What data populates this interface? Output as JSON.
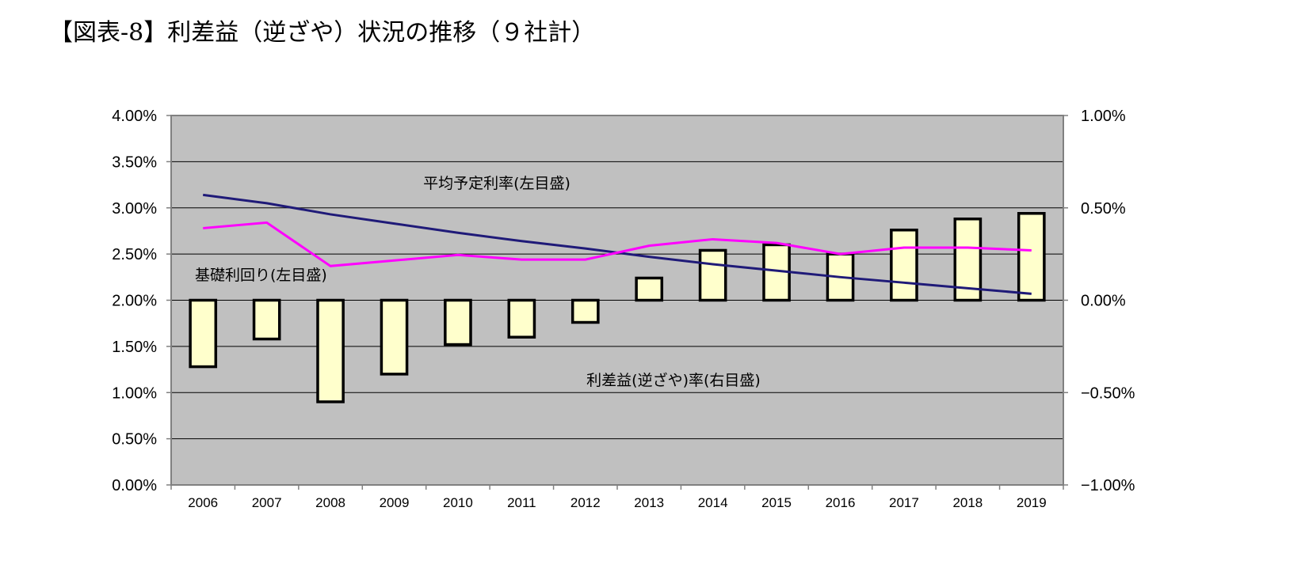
{
  "chart_data": {
    "type": "bar+line",
    "title": "【図表-8】利差益（逆ざや）状況の推移（９社計）",
    "categories": [
      "2006",
      "2007",
      "2008",
      "2009",
      "2010",
      "2011",
      "2012",
      "2013",
      "2014",
      "2015",
      "2016",
      "2017",
      "2018",
      "2019"
    ],
    "left_axis": {
      "ylim": [
        0,
        4
      ],
      "ticks": [
        0,
        0.5,
        1.0,
        1.5,
        2.0,
        2.5,
        3.0,
        3.5,
        4.0
      ],
      "tick_labels": [
        "0.00%",
        "0.50%",
        "1.00%",
        "1.50%",
        "2.00%",
        "2.50%",
        "3.00%",
        "3.50%",
        "4.00%"
      ]
    },
    "right_axis": {
      "ylim": [
        -1,
        1
      ],
      "ticks": [
        -1.0,
        -0.5,
        0.0,
        0.5,
        1.0
      ],
      "tick_labels": [
        "−1.00%",
        "−0.50%",
        "0.00%",
        "0.50%",
        "1.00%"
      ]
    },
    "series": [
      {
        "name": "利差益(逆ざや)率(右目盛)",
        "type": "bar",
        "axis": "right",
        "color": "#FFFFCC",
        "edge": "#000000",
        "values": [
          -0.36,
          -0.21,
          -0.55,
          -0.4,
          -0.24,
          -0.2,
          -0.12,
          0.12,
          0.27,
          0.3,
          0.25,
          0.38,
          0.44,
          0.47
        ],
        "annotation": "利差益(逆ざや)率(右目盛)"
      },
      {
        "name": "平均予定利率(左目盛)",
        "type": "line",
        "axis": "left",
        "color": "#1F1A78",
        "values": [
          3.14,
          3.05,
          2.93,
          2.83,
          2.73,
          2.64,
          2.56,
          2.47,
          2.39,
          2.32,
          2.25,
          2.19,
          2.13,
          2.07
        ],
        "annotation": "平均予定利率(左目盛)"
      },
      {
        "name": "基礎利回り(左目盛)",
        "type": "line",
        "axis": "left",
        "color": "#FF00FF",
        "values": [
          2.78,
          2.84,
          2.37,
          2.43,
          2.49,
          2.44,
          2.44,
          2.59,
          2.66,
          2.62,
          2.5,
          2.57,
          2.57,
          2.54
        ],
        "annotation": "基礎利回り(左目盛)"
      }
    ],
    "grid": true,
    "plot_background": "#C0C0C0"
  }
}
